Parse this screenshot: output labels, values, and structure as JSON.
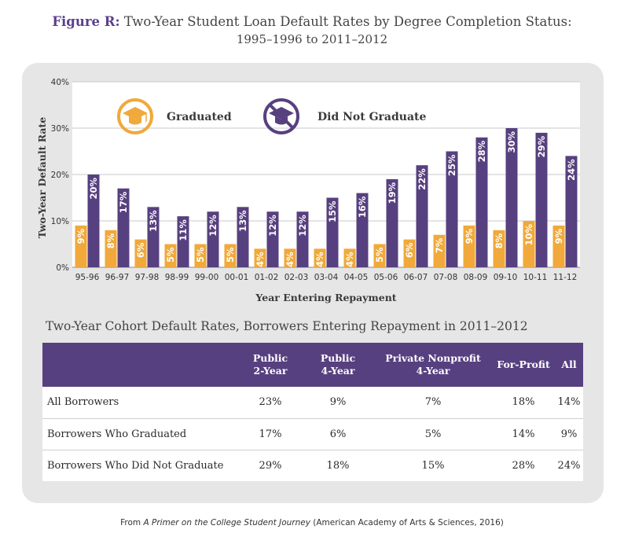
{
  "figure": {
    "label": "Figure R:",
    "title": "Two-Year Student Loan Default Rates by Degree Completion Status:",
    "subtitle": "1995–1996 to 2011–2012"
  },
  "colors": {
    "graduated": "#f0a93a",
    "did_not_graduate": "#57407f",
    "header": "#57407f",
    "title_accent": "#5b3f8f"
  },
  "chart_data": {
    "type": "bar",
    "xlabel": "Year Entering Repayment",
    "ylabel": "Two-Year Default Rate",
    "ylim": [
      0,
      40
    ],
    "yticks": [
      "0%",
      "10%",
      "20%",
      "30%",
      "40%"
    ],
    "grid": true,
    "legend_position": "top-left",
    "categories": [
      "95-96",
      "96-97",
      "97-98",
      "98-99",
      "99-00",
      "00-01",
      "01-02",
      "02-03",
      "03-04",
      "04-05",
      "05-06",
      "06-07",
      "07-08",
      "08-09",
      "09-10",
      "10-11",
      "11-12"
    ],
    "series": [
      {
        "name": "Graduated",
        "icon": "graduation-cap-icon",
        "values": [
          9,
          8,
          6,
          5,
          5,
          5,
          4,
          4,
          4,
          4,
          5,
          6,
          7,
          9,
          8,
          10,
          9
        ]
      },
      {
        "name": "Did Not Graduate",
        "icon": "no-graduation-cap-icon",
        "values": [
          20,
          17,
          13,
          11,
          12,
          13,
          12,
          12,
          15,
          16,
          19,
          22,
          25,
          28,
          30,
          29,
          24
        ]
      }
    ]
  },
  "table": {
    "title": "Two-Year Cohort Default Rates, Borrowers Entering Repayment in 2011–2012",
    "columns": [
      {
        "line1": "",
        "line2": ""
      },
      {
        "line1": "Public",
        "line2": "2-Year"
      },
      {
        "line1": "Public",
        "line2": "4-Year"
      },
      {
        "line1": "Private Nonprofit",
        "line2": "4-Year"
      },
      {
        "line1": "",
        "line2": "For-Profit"
      },
      {
        "line1": "",
        "line2": "All"
      }
    ],
    "rows": [
      {
        "label": "All Borrowers",
        "values": [
          "23%",
          "9%",
          "7%",
          "18%",
          "14%"
        ]
      },
      {
        "label": "Borrowers Who Graduated",
        "values": [
          "17%",
          "6%",
          "5%",
          "14%",
          "9%"
        ]
      },
      {
        "label": "Borrowers Who Did Not Graduate",
        "values": [
          "29%",
          "18%",
          "15%",
          "28%",
          "24%"
        ]
      }
    ]
  },
  "source": {
    "prefix": "From ",
    "work": "A Primer on the College Student Journey",
    "suffix": " (American Academy of Arts & Sciences, 2016)"
  }
}
